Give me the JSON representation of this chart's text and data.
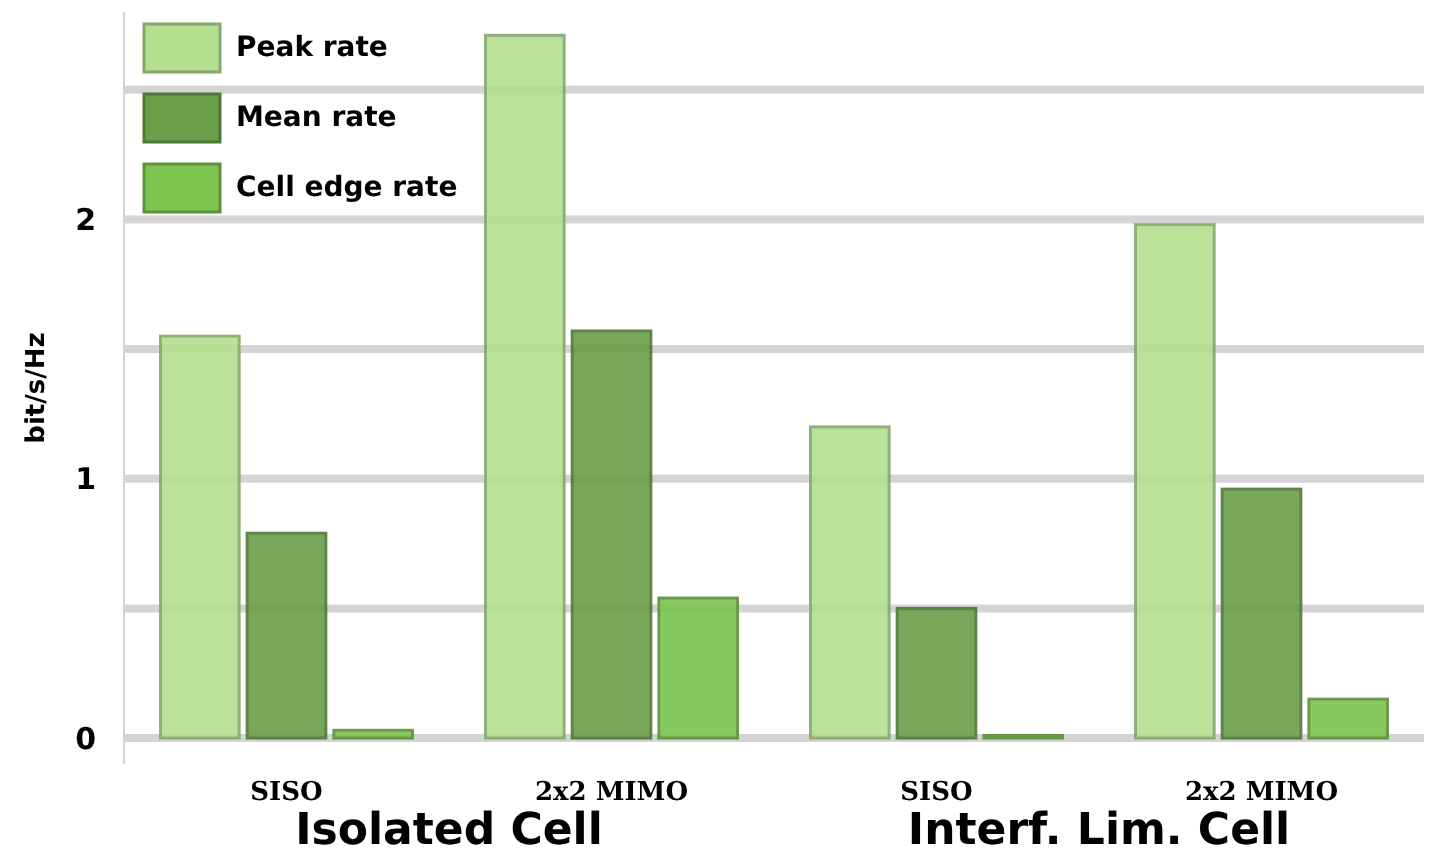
{
  "chart_data": {
    "type": "bar",
    "ylabel": "bit/s/Hz",
    "categories": [
      "SISO",
      "2x2 MIMO",
      "SISO",
      "2x2 MIMO"
    ],
    "series": [
      {
        "name": "Peak rate",
        "color": "#b3df8e",
        "values": [
          1.55,
          2.71,
          1.2,
          1.98
        ]
      },
      {
        "name": "Mean rate",
        "color": "#6a9e48",
        "values": [
          0.79,
          1.57,
          0.5,
          0.96
        ]
      },
      {
        "name": "Cell edge rate",
        "color": "#7cc44e",
        "values": [
          0.03,
          0.54,
          0.01,
          0.15
        ]
      }
    ],
    "annotations": [
      "Isolated Cell",
      "Interf. Lim. Cell"
    ],
    "ylim": [
      -0.1,
      2.8
    ],
    "yticks": [
      0,
      {
        "value": 0.5,
        "label": null
      },
      1,
      {
        "value": 1.5,
        "label": null
      },
      2,
      {
        "value": 2.5,
        "label": null
      }
    ],
    "grid": "y",
    "legend": "top left"
  }
}
